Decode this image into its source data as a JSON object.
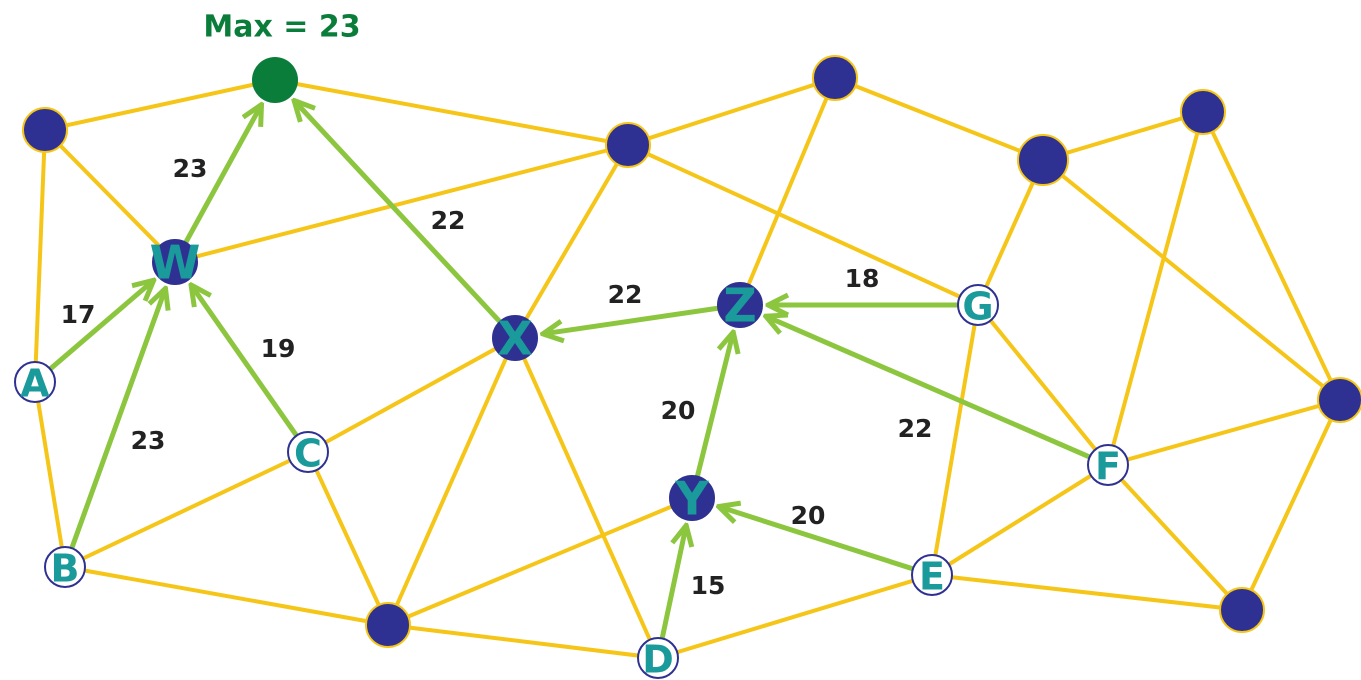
{
  "title": "Max = 23",
  "nodes": [
    "W",
    "A",
    "B",
    "C",
    "X",
    "Z",
    "G",
    "Y",
    "F",
    "E",
    "D"
  ],
  "edge_labels": [
    23,
    17,
    23,
    19,
    22,
    22,
    18,
    22,
    20,
    20,
    15
  ]
}
